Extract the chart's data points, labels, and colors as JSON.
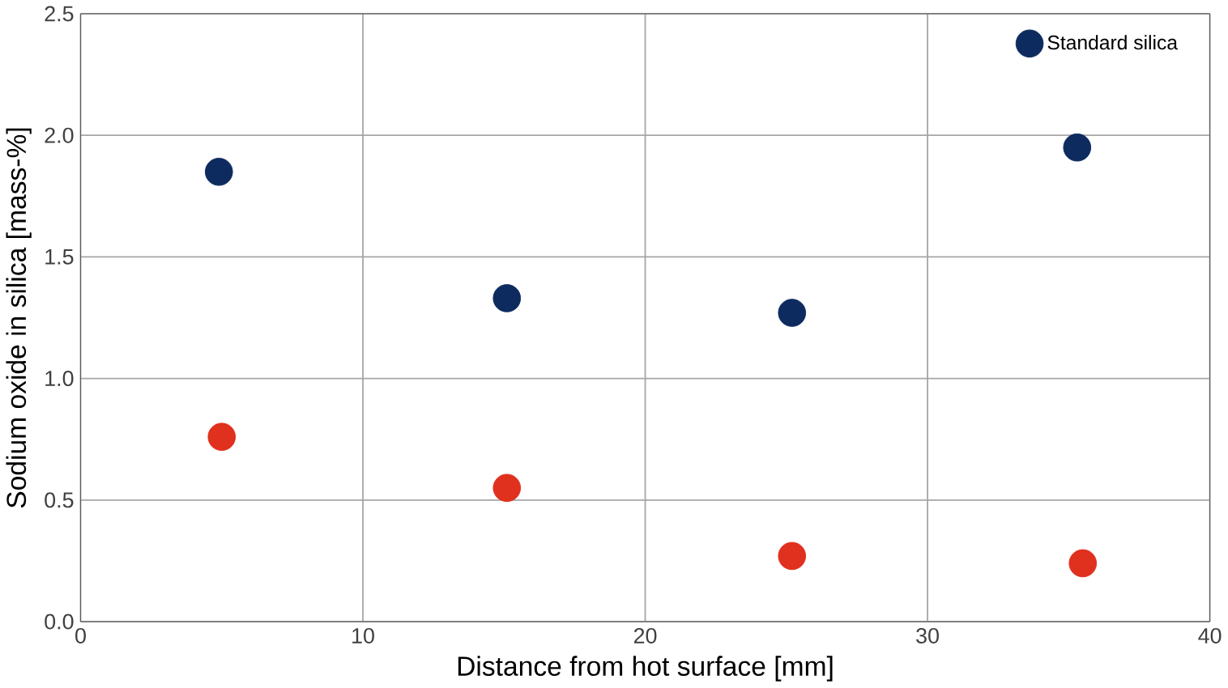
{
  "chart_data": {
    "type": "scatter",
    "xlabel": "Distance from hot surface [mm]",
    "ylabel": "Sodium oxide in silica [mass-%]",
    "xlim": [
      0,
      40
    ],
    "xticks": [
      0,
      10,
      20,
      30,
      40
    ],
    "ylim": [
      0,
      2.5
    ],
    "yticks": [
      {
        "value": 0,
        "label": "0.0"
      },
      {
        "value": 0.5,
        "label": "0.5"
      },
      {
        "value": 1,
        "label": "1.0"
      },
      {
        "value": 1.5,
        "label": "1.5"
      },
      {
        "value": 2,
        "label": "2.0"
      },
      {
        "value": 2.5,
        "label": "2.5"
      }
    ],
    "grid": true,
    "legend": "top right",
    "series": [
      {
        "name": "Standard silica",
        "color": "#0d2b5e",
        "x": [
          4.9,
          15.1,
          25.2,
          35.3
        ],
        "values": [
          1.85,
          1.33,
          1.27,
          1.95
        ]
      },
      {
        "color": "#e0301e",
        "x": [
          5.0,
          15.1,
          25.2,
          35.5
        ],
        "values": [
          0.76,
          0.55,
          0.27,
          0.24
        ]
      }
    ]
  }
}
